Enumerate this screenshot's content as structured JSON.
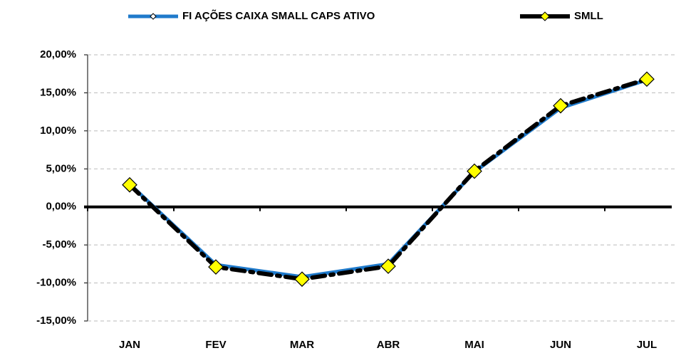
{
  "chart_data": {
    "type": "line",
    "categories": [
      "JAN",
      "FEV",
      "MAR",
      "ABR",
      "MAI",
      "JUN",
      "JUL"
    ],
    "series": [
      {
        "name": "FI AÇÕES CAIXA SMALL CAPS ATIVO",
        "color": "#1f7acb",
        "values": [
          3.0,
          -7.6,
          -9.2,
          -7.5,
          4.6,
          13.0,
          16.7
        ]
      },
      {
        "name": "SMLL",
        "color": "#000000",
        "marker_color": "#ffff00",
        "values": [
          2.9,
          -7.9,
          -9.5,
          -7.8,
          4.7,
          13.3,
          16.8
        ]
      }
    ],
    "ylim": [
      -15,
      20
    ],
    "yticks": [
      {
        "value": -15,
        "label": "-15,00%"
      },
      {
        "value": -10,
        "label": "-10,00%"
      },
      {
        "value": -5,
        "label": "-5,00%"
      },
      {
        "value": 0,
        "label": "0,00%"
      },
      {
        "value": 5,
        "label": "5,00%"
      },
      {
        "value": 10,
        "label": "10,00%"
      },
      {
        "value": 15,
        "label": "15,00%"
      },
      {
        "value": 20,
        "label": "20,00%"
      }
    ],
    "grid": true,
    "legend": "top"
  }
}
